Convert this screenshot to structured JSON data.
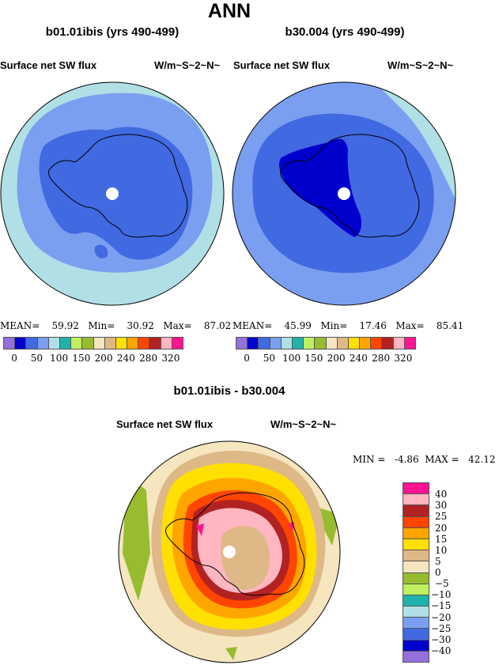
{
  "main_title": "ANN",
  "chart_data": [
    {
      "type": "heatmap",
      "projection": "south-polar-stereographic",
      "title": "b01.01ibis (yrs 490-499)",
      "left_label": "Surface net SW flux",
      "units": "W/m~S~2~N~",
      "stats": {
        "mean_label": "MEAN=",
        "mean": "59.92",
        "min_label": "Min=",
        "min": "30.92",
        "max_label": "Max=",
        "max": "87.02"
      },
      "colorbar_labels": [
        "0",
        "50",
        "100",
        "150",
        "200",
        "240",
        "280",
        "320"
      ]
    },
    {
      "type": "heatmap",
      "projection": "south-polar-stereographic",
      "title": "b30.004 (yrs 490-499)",
      "left_label": "Surface net SW flux",
      "units": "W/m~S~2~N~",
      "stats": {
        "mean_label": "MEAN=",
        "mean": "45.99",
        "min_label": "Min=",
        "min": "17.46",
        "max_label": "Max=",
        "max": "85.41"
      },
      "colorbar_labels": [
        "0",
        "50",
        "100",
        "150",
        "200",
        "240",
        "280",
        "320"
      ]
    },
    {
      "type": "heatmap",
      "projection": "south-polar-stereographic",
      "title": "b01.01ibis - b30.004",
      "left_label": "Surface net SW flux",
      "units": "W/m~S~2~N~",
      "stats": {
        "min_label": "MIN =",
        "min": "-4.86",
        "max_label": "MAX =",
        "max": "42.12"
      },
      "colorbar_labels": [
        "40",
        "30",
        "25",
        "20",
        "15",
        "10",
        "5",
        "0",
        "−5",
        "−10",
        "−15",
        "−20",
        "−25",
        "−30",
        "−40"
      ]
    }
  ],
  "palette": [
    "#9370db",
    "#0000cd",
    "#4169e1",
    "#7b9ff0",
    "#b0e0e6",
    "#20b2aa",
    "#c0f060",
    "#98bc30",
    "#f5e6c0",
    "#deb887",
    "#ffe000",
    "#ffa500",
    "#ff4500",
    "#b22222",
    "#ffb6c1",
    "#ff1493"
  ]
}
